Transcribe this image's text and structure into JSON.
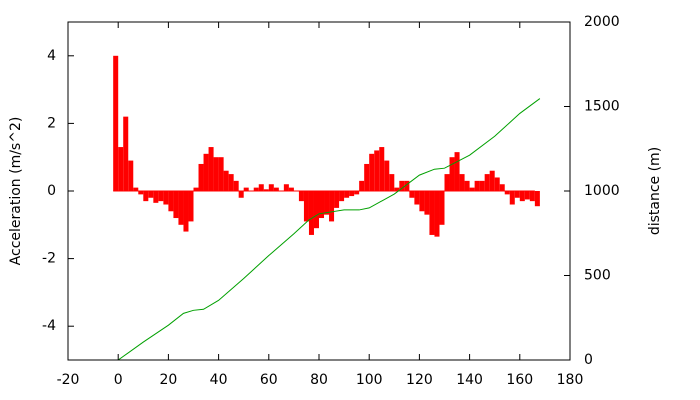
{
  "chart_data": {
    "type": "bar",
    "ylabel": "Acceleration (m/s^2)",
    "y2label": "distance (m)",
    "xlim": [
      -20,
      180
    ],
    "xticks": [
      -20,
      0,
      20,
      40,
      60,
      80,
      100,
      120,
      140,
      160,
      180
    ],
    "ylim": [
      -5,
      5
    ],
    "yticks": [
      -4,
      -2,
      0,
      2,
      4
    ],
    "y2lim": [
      0,
      2000
    ],
    "y2ticks": [
      0,
      500,
      1000,
      1500,
      2000
    ],
    "series": [
      {
        "type": "bar",
        "color": "#ff0000",
        "x": [
          -2,
          0,
          2,
          4,
          6,
          8,
          10,
          12,
          14,
          16,
          18,
          20,
          22,
          24,
          26,
          28,
          30,
          32,
          34,
          36,
          38,
          40,
          42,
          44,
          46,
          48,
          50,
          52,
          54,
          56,
          58,
          60,
          62,
          64,
          66,
          68,
          70,
          72,
          74,
          76,
          78,
          80,
          82,
          84,
          86,
          88,
          90,
          92,
          94,
          96,
          98,
          100,
          102,
          104,
          106,
          108,
          110,
          112,
          114,
          116,
          118,
          120,
          122,
          124,
          126,
          128,
          130,
          132,
          134,
          136,
          138,
          140,
          142,
          144,
          146,
          148,
          150,
          152,
          154,
          156,
          158,
          160,
          162,
          164,
          166
        ],
        "values": [
          4.0,
          1.3,
          2.2,
          0.9,
          0.1,
          -0.1,
          -0.3,
          -0.2,
          -0.35,
          -0.3,
          -0.4,
          -0.6,
          -0.8,
          -1.0,
          -1.2,
          -0.9,
          0.1,
          0.8,
          1.1,
          1.3,
          1.0,
          1.0,
          0.6,
          0.5,
          0.3,
          -0.2,
          0.1,
          0.0,
          0.1,
          0.2,
          0.05,
          0.2,
          0.1,
          0.0,
          0.2,
          0.1,
          0.0,
          -0.3,
          -0.9,
          -1.3,
          -1.1,
          -0.8,
          -0.7,
          -0.9,
          -0.5,
          -0.3,
          -0.2,
          -0.15,
          -0.1,
          0.3,
          0.8,
          1.1,
          1.2,
          1.3,
          0.9,
          0.5,
          0.1,
          0.3,
          0.3,
          -0.2,
          -0.4,
          -0.6,
          -0.7,
          -1.3,
          -1.35,
          -1.0,
          0.5,
          1.0,
          1.15,
          0.5,
          0.3,
          0.1,
          0.3,
          0.3,
          0.5,
          0.6,
          0.4,
          0.2,
          -0.1,
          -0.4,
          -0.2,
          -0.3,
          -0.25,
          -0.3,
          -0.45
        ]
      },
      {
        "type": "line",
        "color": "#00a000",
        "axis": "y2",
        "x": [
          0,
          10,
          20,
          26,
          30,
          34,
          40,
          50,
          60,
          70,
          76,
          80,
          90,
          96,
          100,
          110,
          120,
          126,
          130,
          140,
          150,
          160,
          168
        ],
        "values": [
          0,
          106,
          206,
          276,
          294,
          300,
          353,
          482,
          618,
          747,
          829,
          865,
          888,
          888,
          900,
          982,
          1094,
          1129,
          1135,
          1212,
          1324,
          1459,
          1547
        ]
      }
    ]
  }
}
